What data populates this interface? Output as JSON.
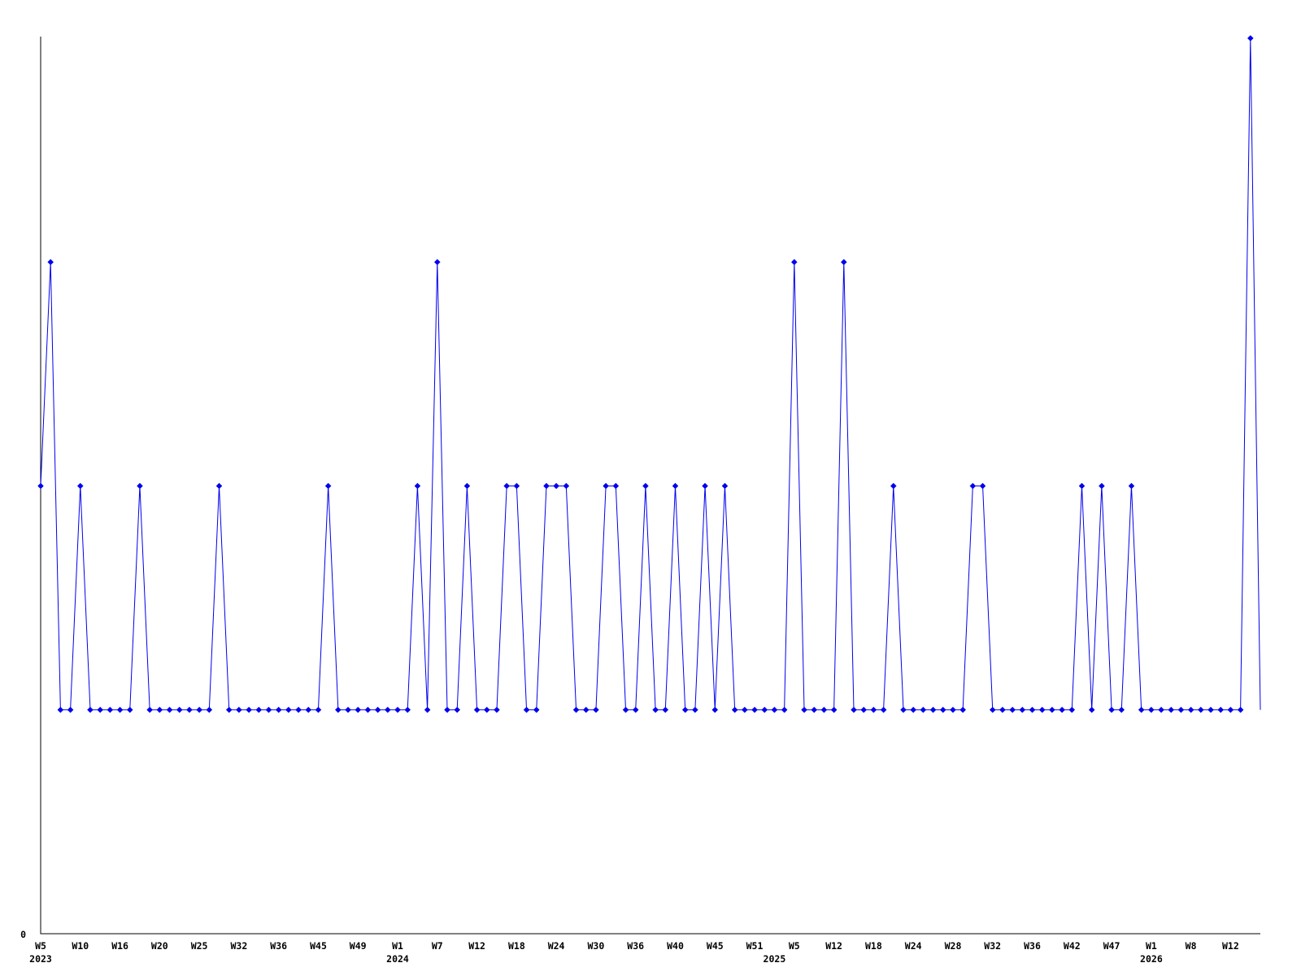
{
  "chart_data": {
    "type": "line",
    "title": "",
    "grid": false,
    "legend": "none",
    "style": {
      "line_color": "#0000ee",
      "marker_color": "#0000ee",
      "marker_shape": "diamond",
      "axis_color": "#000000",
      "text_color": "#000000",
      "background_color": "#ffffff"
    },
    "y_axis": {
      "min": 0,
      "max": 4,
      "tick_labels": [
        {
          "value": 0,
          "label": "0"
        }
      ]
    },
    "x_axis": {
      "tick_labels": [
        {
          "index": 0,
          "label": "W5"
        },
        {
          "index": 4,
          "label": "W10"
        },
        {
          "index": 8,
          "label": "W16"
        },
        {
          "index": 12,
          "label": "W20"
        },
        {
          "index": 16,
          "label": "W25"
        },
        {
          "index": 20,
          "label": "W32"
        },
        {
          "index": 24,
          "label": "W36"
        },
        {
          "index": 28,
          "label": "W45"
        },
        {
          "index": 32,
          "label": "W49"
        },
        {
          "index": 36,
          "label": "W1"
        },
        {
          "index": 40,
          "label": "W7"
        },
        {
          "index": 44,
          "label": "W12"
        },
        {
          "index": 48,
          "label": "W18"
        },
        {
          "index": 52,
          "label": "W24"
        },
        {
          "index": 56,
          "label": "W30"
        },
        {
          "index": 60,
          "label": "W36"
        },
        {
          "index": 64,
          "label": "W40"
        },
        {
          "index": 68,
          "label": "W45"
        },
        {
          "index": 72,
          "label": "W51"
        },
        {
          "index": 76,
          "label": "W5"
        },
        {
          "index": 80,
          "label": "W12"
        },
        {
          "index": 84,
          "label": "W18"
        },
        {
          "index": 88,
          "label": "W24"
        },
        {
          "index": 92,
          "label": "W28"
        },
        {
          "index": 96,
          "label": "W32"
        },
        {
          "index": 100,
          "label": "W36"
        },
        {
          "index": 104,
          "label": "W42"
        },
        {
          "index": 108,
          "label": "W47"
        },
        {
          "index": 112,
          "label": "W1"
        },
        {
          "index": 116,
          "label": "W8"
        },
        {
          "index": 120,
          "label": "W12"
        }
      ],
      "year_labels": [
        {
          "index": 0,
          "label": "2023"
        },
        {
          "index": 36,
          "label": "2024"
        },
        {
          "index": 74,
          "label": "2025"
        },
        {
          "index": 112,
          "label": "2026"
        }
      ]
    },
    "values": [
      2,
      3,
      1,
      1,
      2,
      1,
      1,
      1,
      1,
      1,
      2,
      1,
      1,
      1,
      1,
      1,
      1,
      1,
      2,
      1,
      1,
      1,
      1,
      1,
      1,
      1,
      1,
      1,
      1,
      2,
      1,
      1,
      1,
      1,
      1,
      1,
      1,
      1,
      2,
      1,
      3,
      1,
      1,
      2,
      1,
      1,
      1,
      2,
      2,
      1,
      1,
      2,
      2,
      2,
      1,
      1,
      1,
      2,
      2,
      1,
      1,
      2,
      1,
      1,
      2,
      1,
      1,
      2,
      1,
      2,
      1,
      1,
      1,
      1,
      1,
      1,
      3,
      1,
      1,
      1,
      1,
      3,
      1,
      1,
      1,
      1,
      2,
      1,
      1,
      1,
      1,
      1,
      1,
      1,
      2,
      2,
      1,
      1,
      1,
      1,
      1,
      1,
      1,
      1,
      1,
      2,
      1,
      2,
      1,
      1,
      2,
      1,
      1,
      1,
      1,
      1,
      1,
      1,
      1,
      1,
      1,
      1,
      4,
      1
    ]
  }
}
